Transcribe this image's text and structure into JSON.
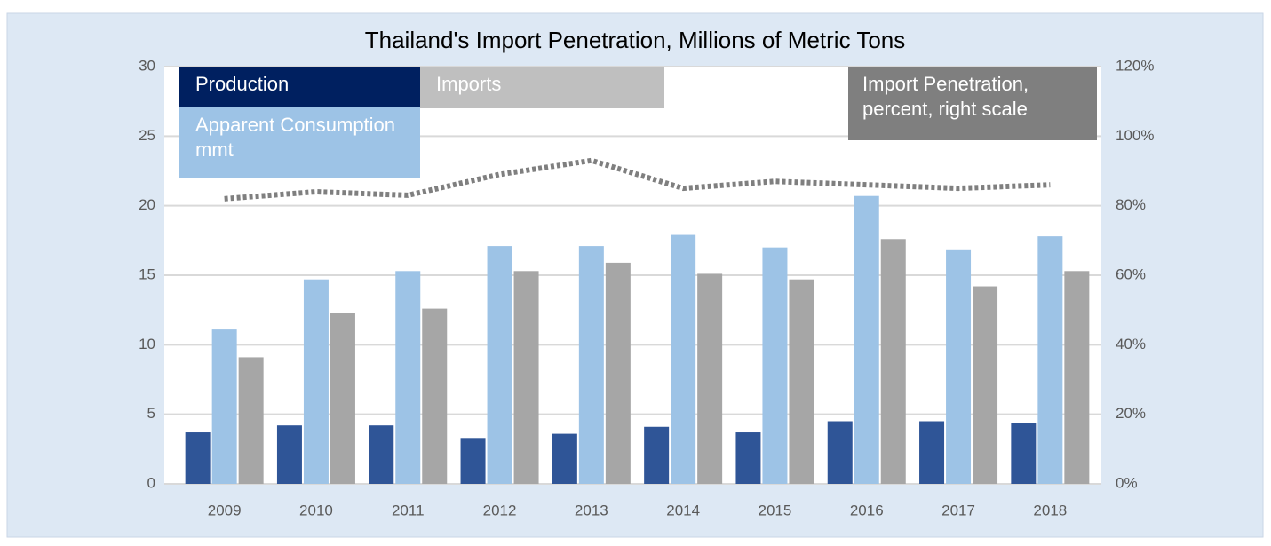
{
  "chart_data": {
    "type": "bar",
    "title": "Thailand's Import Penetration, Millions of Metric Tons",
    "categories": [
      "2009",
      "2010",
      "2011",
      "2012",
      "2013",
      "2014",
      "2015",
      "2016",
      "2017",
      "2018"
    ],
    "series": [
      {
        "name": "Production",
        "color": "#2f5597",
        "legend_color": "#002060",
        "values": [
          3.7,
          4.2,
          4.2,
          3.3,
          3.6,
          4.1,
          3.7,
          4.5,
          4.5,
          4.4
        ]
      },
      {
        "name": "Apparent Consumption mmt",
        "color": "#9dc3e6",
        "legend_color": "#9dc3e6",
        "values": [
          11.1,
          14.7,
          15.3,
          17.1,
          17.1,
          17.9,
          17.0,
          20.7,
          16.8,
          17.8
        ]
      },
      {
        "name": "Imports",
        "color": "#a6a6a6",
        "legend_color": "#bfbfbf",
        "values": [
          9.1,
          12.3,
          12.6,
          15.3,
          15.9,
          15.1,
          14.7,
          17.6,
          14.2,
          15.3
        ]
      },
      {
        "name": "Import Penetration, percent, right scale",
        "type": "line",
        "axis": "y2",
        "color": "#7f7f7f",
        "legend_color": "#7f7f7f",
        "values": [
          82,
          84,
          83,
          89,
          93,
          85,
          87,
          86,
          85,
          86
        ]
      }
    ],
    "ylim": [
      0,
      30
    ],
    "yticks": [
      0,
      5,
      10,
      15,
      20,
      25,
      30
    ],
    "y2lim": [
      0,
      120
    ],
    "y2ticks": [
      {
        "value": 0,
        "label": "0%"
      },
      {
        "value": 20,
        "label": "20%"
      },
      {
        "value": 40,
        "label": "40%"
      },
      {
        "value": 60,
        "label": "60%"
      },
      {
        "value": 80,
        "label": "80%"
      },
      {
        "value": 100,
        "label": "100%"
      },
      {
        "value": 120,
        "label": "120%"
      }
    ],
    "grid": true
  }
}
